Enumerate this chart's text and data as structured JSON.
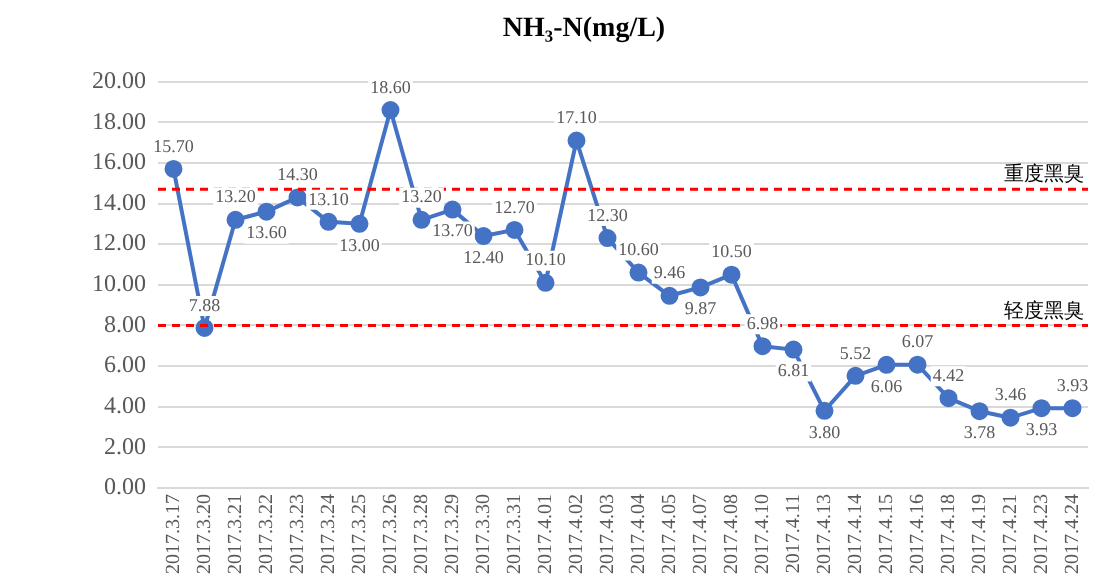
{
  "chart_data": {
    "type": "line",
    "title": "NH₃-N(mg/L)",
    "categories": [
      "2017.3.17",
      "2017.3.20",
      "2017.3.21",
      "2017.3.22",
      "2017.3.23",
      "2017.3.24",
      "2017.3.25",
      "2017.3.26",
      "2017.3.28",
      "2017.3.29",
      "2017.3.30",
      "2017.3.31",
      "2017.4.01",
      "2017.4.02",
      "2017.4.03",
      "2017.4.04",
      "2017.4.05",
      "2017.4.07",
      "2017.4.08",
      "2017.4.10",
      "2017.4.11",
      "2017.4.13",
      "2017.4.14",
      "2017.4.15",
      "2017.4.16",
      "2017.4.18",
      "2017.4.19",
      "2017.4.21",
      "2017.4.23",
      "2017.4.24"
    ],
    "series": [
      {
        "color": "#4472c4",
        "values": [
          15.7,
          7.88,
          13.2,
          13.6,
          14.3,
          13.1,
          13.0,
          18.6,
          13.2,
          13.7,
          12.4,
          12.7,
          10.1,
          17.1,
          12.3,
          10.6,
          9.46,
          9.87,
          10.5,
          6.98,
          6.81,
          3.8,
          5.52,
          6.06,
          6.07,
          4.42,
          3.78,
          3.46,
          3.93,
          3.93
        ],
        "value_labels": [
          "15.70",
          "7.88",
          "13.20",
          "13.60",
          "14.30",
          "13.10",
          "13.00",
          "18.60",
          "13.20",
          "13.70",
          "12.40",
          "12.70",
          "10.10",
          "17.10",
          "12.30",
          "10.60",
          "9.46",
          "9.87",
          "10.50",
          "6.98",
          "6.81",
          "3.80",
          "5.52",
          "6.06",
          "6.07",
          "4.42",
          "3.78",
          "3.46",
          "3.93",
          "3.93"
        ]
      }
    ],
    "ylim": [
      0,
      20
    ],
    "yticks": [
      {
        "value": 0,
        "label": "0.00"
      },
      {
        "value": 2,
        "label": "2.00"
      },
      {
        "value": 4,
        "label": "4.00"
      },
      {
        "value": 6,
        "label": "6.00"
      },
      {
        "value": 8,
        "label": "8.00"
      },
      {
        "value": 10,
        "label": "10.00"
      },
      {
        "value": 12,
        "label": "12.00"
      },
      {
        "value": 14,
        "label": "14.00"
      },
      {
        "value": 16,
        "label": "16.00"
      },
      {
        "value": 18,
        "label": "18.00"
      },
      {
        "value": 20,
        "label": "20.00"
      }
    ],
    "ref_lines": [
      {
        "axis": "y",
        "value": 14.7,
        "label": "重度黑臭",
        "color": "#ff0000",
        "line_style": "dashed"
      },
      {
        "axis": "y",
        "value": 8.0,
        "label": "轻度黑臭",
        "color": "#ff0000",
        "line_style": "dashed"
      }
    ],
    "grid": "y",
    "legend": false,
    "marker": "circle",
    "line_style": "solid"
  }
}
